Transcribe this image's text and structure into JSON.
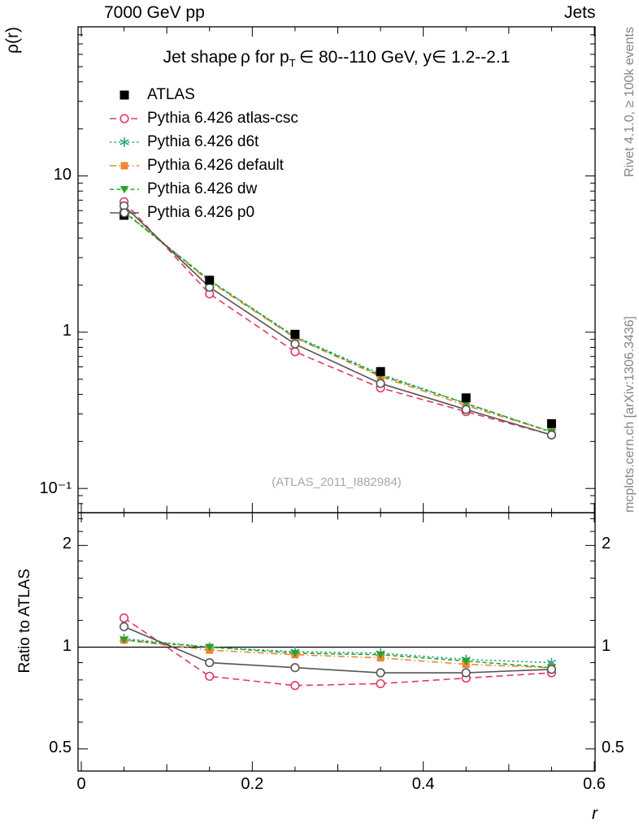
{
  "header": {
    "left": "7000 GeV pp",
    "right": "Jets"
  },
  "title": {
    "prefix": "Jet shape ρ for p",
    "sub": "T",
    "suffix": " ∈ 80--110 GeV, y∈ 1.2--2.1"
  },
  "watermark": "(ATLAS_2011_I882984)",
  "side_notes": {
    "top": "Rivet 4.1.0, ≥ 100k events",
    "bottom": "mcplots.cern.ch [arXiv:1306.3436]"
  },
  "axes": {
    "y_main_label": "ρ(r)",
    "y_ratio_label": "Ratio to ATLAS",
    "x_label": "r",
    "y_main_ticks": [
      {
        "v": 10,
        "label": "10"
      },
      {
        "v": 1,
        "label": "1"
      },
      {
        "v": 0.1,
        "label": "10⁻¹"
      }
    ],
    "y_ratio_ticks": [
      {
        "v": 2,
        "label": "2"
      },
      {
        "v": 1,
        "label": "1"
      },
      {
        "v": 0.5,
        "label": "0.5"
      }
    ],
    "x_ticks": [
      {
        "v": 0,
        "label": "0"
      },
      {
        "v": 0.2,
        "label": "0.2"
      },
      {
        "v": 0.4,
        "label": "0.4"
      },
      {
        "v": 0.6,
        "label": "0.6"
      }
    ]
  },
  "chart_data": {
    "type": "line",
    "x": [
      0.05,
      0.15,
      0.25,
      0.35,
      0.45,
      0.55
    ],
    "xlabel": "r",
    "ylabel": "ρ(r)",
    "ratio_ylabel": "Ratio to ATLAS",
    "xlim": [
      0,
      0.6
    ],
    "ylim_main": [
      0.07,
      90
    ],
    "ylim_ratio": [
      0.43,
      2.5
    ],
    "yscale": "log",
    "grid": false,
    "legend_position": "top-left",
    "series": [
      {
        "name": "ATLAS",
        "color": "#000000",
        "marker": "filled-square",
        "marker_size": 11,
        "line_style": "none",
        "values": [
          5.6,
          2.15,
          0.97,
          0.56,
          0.38,
          0.26
        ],
        "ratio": null
      },
      {
        "name": "Pythia 6.426 atlas-csc",
        "color": "#e23a60",
        "marker": "open-circle",
        "marker_size": 9.6,
        "line_style": "dashed",
        "values": [
          6.83,
          1.76,
          0.75,
          0.44,
          0.31,
          0.22
        ],
        "ratio": [
          1.22,
          0.82,
          0.77,
          0.78,
          0.81,
          0.84
        ]
      },
      {
        "name": "Pythia 6.426 d6t",
        "color": "#33a58c",
        "marker": "asterisk",
        "marker_size": 12,
        "line_style": "fine-dashed",
        "values": [
          5.94,
          2.15,
          0.94,
          0.54,
          0.35,
          0.23
        ],
        "ratio": [
          1.06,
          1.0,
          0.97,
          0.96,
          0.92,
          0.9
        ]
      },
      {
        "name": "Pythia 6.426 default",
        "color": "#f08633",
        "marker": "filled-square",
        "marker_size": 9,
        "line_style": "dash-dot",
        "values": [
          5.88,
          2.11,
          0.92,
          0.52,
          0.34,
          0.23
        ],
        "ratio": [
          1.05,
          0.98,
          0.95,
          0.93,
          0.89,
          0.87
        ]
      },
      {
        "name": "Pythia 6.426 dw",
        "color": "#29a329",
        "marker": "triangle-down",
        "marker_size": 10.5,
        "line_style": "med-dashed",
        "values": [
          5.88,
          2.15,
          0.93,
          0.53,
          0.35,
          0.23
        ],
        "ratio": [
          1.05,
          1.0,
          0.96,
          0.95,
          0.91,
          0.87
        ]
      },
      {
        "name": "Pythia 6.426 p0",
        "color": "#555555",
        "marker": "open-circle",
        "marker_size": 9.6,
        "line_style": "solid",
        "values": [
          6.44,
          1.94,
          0.84,
          0.47,
          0.32,
          0.22
        ],
        "ratio": [
          1.15,
          0.9,
          0.87,
          0.84,
          0.84,
          0.86
        ]
      }
    ]
  }
}
